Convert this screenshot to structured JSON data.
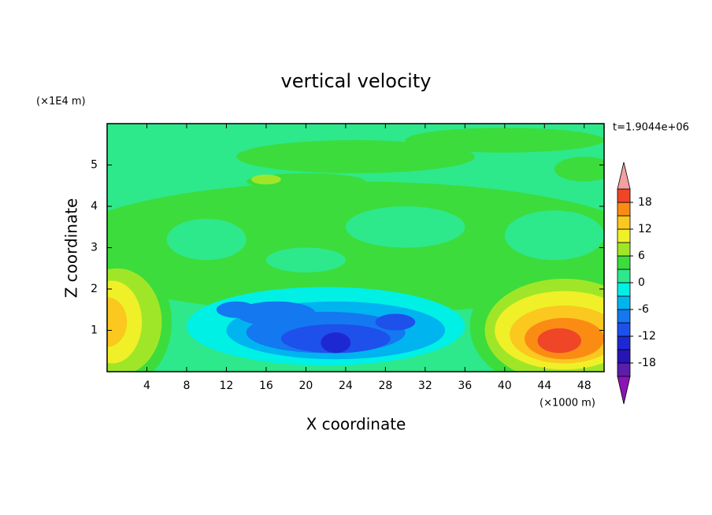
{
  "chart_data": {
    "type": "contour",
    "title": "vertical velocity",
    "xlabel": "X coordinate",
    "ylabel": "Z coordinate",
    "x_unit": "(×1000 m)",
    "y_unit": "(×1E4 m)",
    "annotation": "t=1.9044e+06",
    "xlim": [
      0,
      50
    ],
    "xticks": [
      4,
      8,
      12,
      16,
      20,
      24,
      28,
      32,
      36,
      40,
      44,
      48
    ],
    "ylim": [
      0,
      6
    ],
    "yticks": [
      1,
      2,
      3,
      4,
      5
    ],
    "colorbar": {
      "levels": [
        -21,
        -18,
        -15,
        -12,
        -9,
        -6,
        -3,
        0,
        3,
        6,
        9,
        12,
        15,
        18,
        21
      ],
      "colors": [
        "#5a1eaa",
        "#2814b4",
        "#1e28d2",
        "#1e50eb",
        "#1478f0",
        "#00b4f0",
        "#00f0e6",
        "#2ee88c",
        "#3cdc3c",
        "#a0e628",
        "#f0f028",
        "#fac81e",
        "#fa8c14",
        "#f04628"
      ],
      "ticks": [
        -18,
        -12,
        -6,
        0,
        6,
        12,
        18
      ],
      "under_color": "#8c14b4",
      "over_color": "#f4a0a0"
    }
  }
}
